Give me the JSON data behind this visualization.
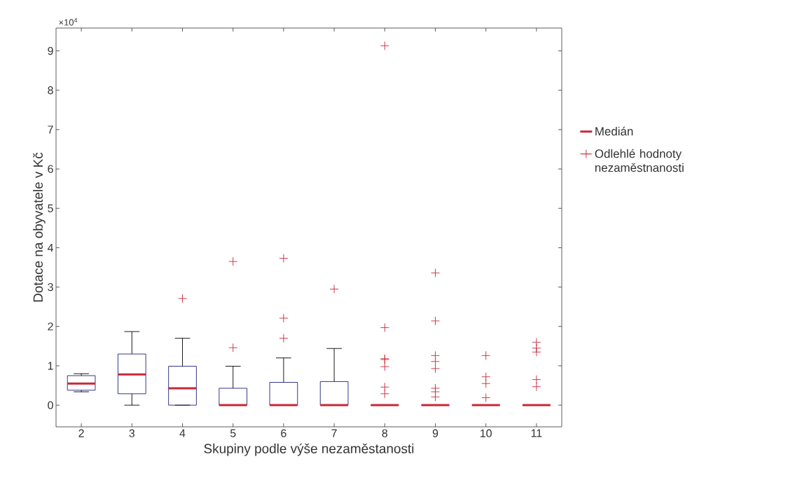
{
  "chart_data": {
    "type": "box",
    "xlabel": "Skupiny podle výše nezaměstanosti",
    "ylabel": "Dotace na obyvatele v Kč",
    "annotations": [
      "×10$^{4}$",
      "Medián"
    ],
    "categories": [
      "2",
      "3",
      "4",
      "5",
      "6",
      "7",
      "8",
      "9",
      "10",
      "11"
    ],
    "ylim": [
      -0.55,
      9.58
    ],
    "yticks": [
      0,
      1,
      2,
      3,
      4,
      5,
      6,
      7,
      8,
      9
    ],
    "legend": "right",
    "series": [
      {
        "color": "#1f1f7a",
        "boxes": [
          {
            "low": 0.34,
            "q1": 0.38,
            "median": 0.55,
            "q3": 0.75,
            "high": 0.8
          },
          {
            "low": 0,
            "q1": 0.29,
            "median": 0.78,
            "q3": 1.3,
            "high": 1.87
          },
          {
            "low": 0,
            "q1": 0,
            "median": 0.43,
            "q3": 0.99,
            "high": 1.7
          },
          {
            "low": 0,
            "q1": 0,
            "median": 0,
            "q3": 0.43,
            "high": 0.99
          },
          {
            "low": 0,
            "q1": 0,
            "median": 0,
            "q3": 0.58,
            "high": 1.2
          },
          {
            "low": 0,
            "q1": 0,
            "median": 0,
            "q3": 0.6,
            "high": 1.44
          },
          {
            "low": 0,
            "q1": 0,
            "median": 0,
            "q3": 0,
            "high": 0
          },
          {
            "low": 0,
            "q1": 0,
            "median": 0,
            "q3": 0,
            "high": 0
          },
          {
            "low": 0,
            "q1": 0,
            "median": 0,
            "q3": 0,
            "high": 0
          },
          {
            "low": 0,
            "q1": 0,
            "median": 0,
            "q3": 0,
            "high": 0
          }
        ]
      },
      {
        "type": "scatter",
        "name": "Odlehlé hodnoty nezaměstnanosti",
        "color": "#c8283a",
        "marker": "cross",
        "x": [
          "4",
          "5",
          "5",
          "6",
          "6",
          "6",
          "7",
          "8",
          "8",
          "8",
          "8",
          "8",
          "8",
          "8",
          "9",
          "9",
          "9",
          "9",
          "9",
          "9",
          "9",
          "9",
          "10",
          "10",
          "10",
          "10",
          "11",
          "11",
          "11",
          "11",
          "11"
        ],
        "values": [
          2.71,
          1.46,
          3.65,
          1.7,
          2.21,
          3.73,
          2.95,
          0.29,
          0.46,
          0.98,
          1.16,
          1.18,
          1.97,
          9.13,
          0.21,
          0.34,
          0.43,
          0.93,
          1.11,
          1.26,
          2.14,
          3.36,
          0.19,
          0.55,
          0.72,
          1.26,
          0.47,
          0.65,
          1.35,
          1.45,
          1.6
        ]
      }
    ]
  }
}
